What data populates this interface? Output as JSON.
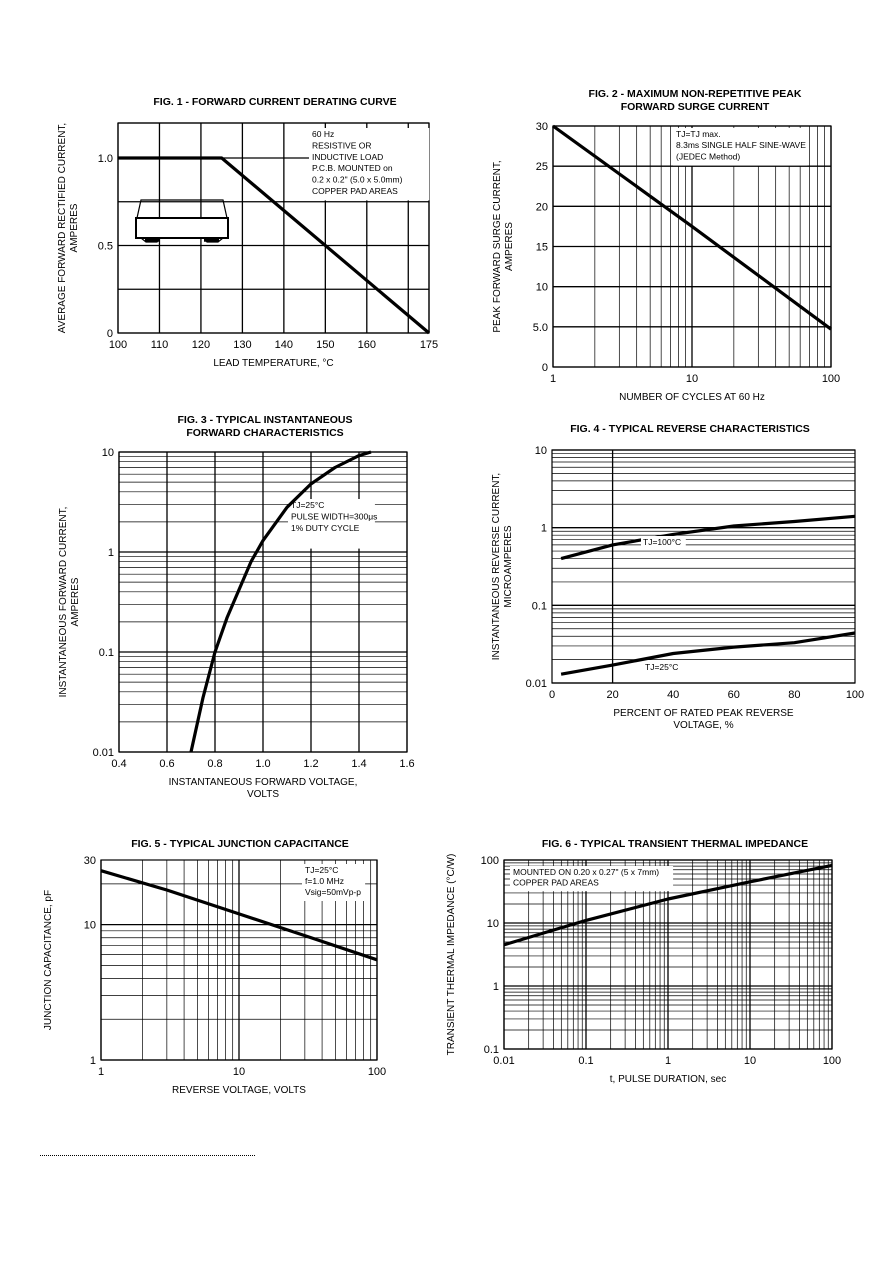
{
  "colors": {
    "ink": "#000000",
    "paper": "#ffffff"
  },
  "chart_data": [
    {
      "id": "fig1",
      "type": "line",
      "title": "FIG. 1 -  FORWARD CURRENT DERATING CURVE",
      "xlabel": "LEAD TEMPERATURE, °C",
      "ylabel": "AVERAGE FORWARD RECTIFIED CURRENT,\nAMPERES",
      "xscale": "linear",
      "yscale": "linear",
      "xlim": [
        100,
        175
      ],
      "ylim": [
        0,
        1.2
      ],
      "xticks": [
        100,
        110,
        120,
        130,
        140,
        150,
        160,
        175
      ],
      "xtick_labels": [
        "100",
        "110",
        "120",
        "130",
        "140",
        "150",
        "160",
        "175"
      ],
      "xgrid": [
        100,
        110,
        120,
        130,
        140,
        150,
        160,
        170,
        175
      ],
      "yticks": [
        0,
        0.5,
        1.0
      ],
      "ytick_labels": [
        "0",
        "0.5",
        "1.0"
      ],
      "ygrid": [
        0,
        0.25,
        0.5,
        0.75,
        1.0,
        1.2
      ],
      "annotation": "60 Hz\nRESISTIVE OR\nINDUCTIVE LOAD\nP.C.B. MOUNTED on\n0.2 x 0.2\" (5.0 x 5.0mm)\nCOPPER PAD AREAS",
      "annotation_position": "top-right",
      "icon": "smd-package-icon",
      "series": [
        {
          "x": [
            100,
            125,
            175
          ],
          "y": [
            1.0,
            1.0,
            0
          ]
        }
      ]
    },
    {
      "id": "fig2",
      "type": "line",
      "title": "FIG. 2 - MAXIMUM NON-REPETITIVE PEAK\nFORWARD SURGE CURRENT",
      "xlabel": "NUMBER OF CYCLES AT 60 Hz",
      "ylabel": "PEAK FORWARD SURGE CURRENT,\nAMPERES",
      "xscale": "log",
      "yscale": "linear",
      "xlim": [
        1,
        100
      ],
      "ylim": [
        0,
        30
      ],
      "xticks": [
        1,
        10,
        100
      ],
      "xtick_labels": [
        "1",
        "10",
        "100"
      ],
      "yticks": [
        0,
        5,
        10,
        15,
        20,
        25,
        30
      ],
      "ytick_labels": [
        "0",
        "5.0",
        "10",
        "15",
        "20",
        "25",
        "30"
      ],
      "ygrid": [
        0,
        5,
        10,
        15,
        20,
        25,
        30
      ],
      "annotation": "TJ=TJ max.\n8.3ms SINGLE HALF SINE-WAVE\n(JEDEC Method)",
      "annotation_position": "top-right",
      "series": [
        {
          "x": [
            1,
            10,
            100
          ],
          "y": [
            30,
            17.5,
            4.7
          ]
        }
      ]
    },
    {
      "id": "fig3",
      "type": "line",
      "title": "FIG. 3 - TYPICAL INSTANTANEOUS\nFORWARD CHARACTERISTICS",
      "xlabel": "INSTANTANEOUS FORWARD VOLTAGE,\nVOLTS",
      "ylabel": "INSTANTANEOUS FORWARD CURRENT,\nAMPERES",
      "xscale": "linear",
      "yscale": "log",
      "xlim": [
        0.4,
        1.6
      ],
      "ylim": [
        0.01,
        10
      ],
      "xticks": [
        0.4,
        0.6,
        0.8,
        1.0,
        1.2,
        1.4,
        1.6
      ],
      "xtick_labels": [
        "0.4",
        "0.6",
        "0.8",
        "1.0",
        "1.2",
        "1.4",
        "1.6"
      ],
      "xgrid": [
        0.4,
        0.6,
        0.8,
        1.0,
        1.2,
        1.4,
        1.6
      ],
      "yticks": [
        0.01,
        0.1,
        1,
        10
      ],
      "ytick_labels": [
        "0.01",
        "0.1",
        "1",
        "10"
      ],
      "annotation": "TJ=25°C\n\nPULSE WIDTH=300μs\n1% DUTY CYCLE",
      "annotation_position": "right",
      "series": [
        {
          "x": [
            0.7,
            0.75,
            0.8,
            0.85,
            0.9,
            0.95,
            1.0,
            1.1,
            1.2,
            1.3,
            1.4,
            1.45
          ],
          "y": [
            0.01,
            0.035,
            0.1,
            0.22,
            0.42,
            0.8,
            1.3,
            2.8,
            4.8,
            7.0,
            9.2,
            10.0
          ]
        }
      ]
    },
    {
      "id": "fig4",
      "type": "line",
      "title": "FIG. 4 - TYPICAL REVERSE  CHARACTERISTICS",
      "xlabel": "PERCENT OF RATED PEAK REVERSE\nVOLTAGE, %",
      "ylabel": "INSTANTANEOUS REVERSE CURRENT,\nMICROAMPERES",
      "xscale": "linear",
      "yscale": "log",
      "xlim": [
        0,
        100
      ],
      "ylim": [
        0.01,
        10
      ],
      "xticks": [
        0,
        20,
        40,
        60,
        80,
        100
      ],
      "xtick_labels": [
        "0",
        "20",
        "40",
        "60",
        "80",
        "100"
      ],
      "xgrid": [
        20
      ],
      "yticks": [
        0.01,
        0.1,
        1,
        10
      ],
      "ytick_labels": [
        "0.01",
        "0.1",
        "1",
        "10"
      ],
      "series": [
        {
          "name": "TJ=100°C",
          "x": [
            3,
            20,
            40,
            60,
            80,
            100
          ],
          "y": [
            0.4,
            0.6,
            0.82,
            1.05,
            1.2,
            1.4
          ]
        },
        {
          "name": "TJ=25°C",
          "x": [
            3,
            20,
            40,
            60,
            80,
            100
          ],
          "y": [
            0.013,
            0.017,
            0.024,
            0.029,
            0.033,
            0.044
          ]
        }
      ]
    },
    {
      "id": "fig5",
      "type": "line",
      "title": "FIG. 5 - TYPICAL JUNCTION CAPACITANCE",
      "xlabel": "REVERSE VOLTAGE, VOLTS",
      "ylabel": "JUNCTION CAPACITANCE, pF",
      "xscale": "log",
      "yscale": "log",
      "xlim": [
        1,
        100
      ],
      "ylim": [
        1,
        30
      ],
      "xticks": [
        1,
        10,
        100
      ],
      "xtick_labels": [
        "1",
        "10",
        "100"
      ],
      "yticks": [
        1,
        10,
        30
      ],
      "ytick_labels": [
        "1",
        "10",
        "30"
      ],
      "annotation": "TJ=25°C\nf=1.0 MHz\nVsig=50mVp-p",
      "annotation_position": "top-right",
      "series": [
        {
          "x": [
            1,
            3,
            10,
            30,
            100
          ],
          "y": [
            25,
            18,
            12,
            8.3,
            5.5
          ]
        }
      ]
    },
    {
      "id": "fig6",
      "type": "line",
      "title": "FIG. 6 - TYPICAL TRANSIENT THERMAL IMPEDANCE",
      "xlabel": "t, PULSE DURATION, sec",
      "ylabel": "TRANSIENT THERMAL IMPEDANCE (°C/W)",
      "xscale": "log",
      "yscale": "log",
      "xlim": [
        0.01,
        100
      ],
      "ylim": [
        0.1,
        100
      ],
      "xticks": [
        0.01,
        0.1,
        1,
        10,
        100
      ],
      "xtick_labels": [
        "0.01",
        "0.1",
        "1",
        "10",
        "100"
      ],
      "yticks": [
        0.1,
        1,
        10,
        100
      ],
      "ytick_labels": [
        "0.1",
        "1",
        "10",
        "100"
      ],
      "annotation": "MOUNTED ON 0.20 x 0.27\" (5 x 7mm)\nCOPPER PAD AREAS",
      "annotation_position": "top-left",
      "series": [
        {
          "x": [
            0.01,
            0.1,
            1,
            10,
            100
          ],
          "y": [
            4.5,
            11,
            24,
            45,
            82
          ]
        }
      ]
    }
  ]
}
